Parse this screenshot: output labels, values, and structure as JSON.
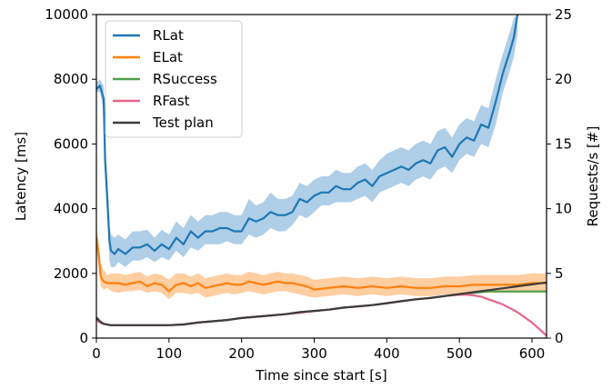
{
  "chart_data": {
    "type": "line",
    "xlabel": "Time since start [s]",
    "ylabel": "Latency [ms]",
    "y2label": "Requests/s [#]",
    "xlim": [
      0,
      620
    ],
    "ylim": [
      0,
      10000
    ],
    "y2lim": [
      0,
      25
    ],
    "xticks": [
      0,
      100,
      200,
      300,
      400,
      500,
      600
    ],
    "yticks": [
      0,
      2000,
      4000,
      6000,
      8000,
      10000
    ],
    "y2ticks": [
      0,
      5,
      10,
      15,
      20,
      25
    ],
    "grid": false,
    "legend_position": "top-left",
    "series": [
      {
        "name": "RLat",
        "axis": "left",
        "color": "#1f77b4",
        "band_color": "#a6c9e4",
        "x": [
          0,
          5,
          10,
          12,
          15,
          18,
          20,
          25,
          30,
          40,
          50,
          60,
          70,
          80,
          90,
          100,
          110,
          120,
          130,
          140,
          150,
          160,
          170,
          180,
          190,
          200,
          210,
          220,
          230,
          240,
          250,
          260,
          270,
          280,
          290,
          300,
          310,
          320,
          330,
          340,
          350,
          360,
          370,
          380,
          390,
          400,
          410,
          420,
          430,
          440,
          450,
          460,
          470,
          480,
          490,
          500,
          510,
          520,
          530,
          540,
          550,
          560,
          570,
          575,
          580
        ],
        "y": [
          7700,
          7800,
          7400,
          5500,
          4300,
          3000,
          2700,
          2600,
          2750,
          2600,
          2800,
          2800,
          2900,
          2700,
          2900,
          2750,
          3100,
          2900,
          3300,
          3100,
          3300,
          3300,
          3400,
          3400,
          3300,
          3300,
          3700,
          3600,
          3700,
          3900,
          3800,
          3800,
          3900,
          4300,
          4200,
          4400,
          4500,
          4500,
          4700,
          4600,
          4600,
          4800,
          4900,
          4700,
          5000,
          5100,
          5200,
          5300,
          5200,
          5400,
          5500,
          5400,
          5800,
          5900,
          5600,
          6000,
          6200,
          6100,
          6600,
          6500,
          7300,
          8200,
          8900,
          9300,
          10000
        ],
        "lower": [
          7600,
          7600,
          7000,
          5000,
          3700,
          2400,
          2200,
          2200,
          2350,
          2200,
          2400,
          2400,
          2500,
          2350,
          2500,
          2400,
          2700,
          2500,
          2800,
          2700,
          2900,
          2900,
          2900,
          3000,
          2900,
          2900,
          3200,
          3100,
          3200,
          3400,
          3300,
          3300,
          3500,
          3800,
          3700,
          3900,
          4100,
          4100,
          4200,
          4200,
          4200,
          4300,
          4400,
          4200,
          4500,
          4600,
          4700,
          4800,
          4700,
          4900,
          5000,
          4900,
          5200,
          5300,
          5100,
          5500,
          5700,
          5600,
          6000,
          5900,
          6600,
          7600,
          8300,
          8700,
          9400
        ],
        "upper": [
          7900,
          8000,
          7800,
          6000,
          4900,
          3500,
          3200,
          3100,
          3200,
          3050,
          3300,
          3300,
          3350,
          3100,
          3350,
          3200,
          3600,
          3400,
          3800,
          3600,
          3800,
          3800,
          3900,
          3900,
          3800,
          3800,
          4300,
          4100,
          4200,
          4500,
          4300,
          4300,
          4400,
          4800,
          4700,
          4900,
          5000,
          5000,
          5200,
          5100,
          5100,
          5300,
          5400,
          5200,
          5500,
          5700,
          5800,
          5900,
          5800,
          6000,
          6100,
          6000,
          6400,
          6500,
          6200,
          6600,
          6800,
          6700,
          7200,
          7100,
          8000,
          8800,
          9500,
          9900,
          10000
        ]
      },
      {
        "name": "ELat",
        "axis": "left",
        "color": "#ff7f0e",
        "band_color": "#ffc997",
        "x": [
          0,
          3,
          6,
          10,
          15,
          20,
          30,
          40,
          50,
          60,
          70,
          80,
          90,
          100,
          110,
          120,
          130,
          140,
          150,
          160,
          170,
          180,
          190,
          200,
          210,
          220,
          230,
          240,
          250,
          260,
          270,
          280,
          290,
          300,
          320,
          340,
          360,
          380,
          400,
          420,
          440,
          460,
          480,
          500,
          520,
          540,
          560,
          580,
          600,
          620
        ],
        "y": [
          3100,
          2600,
          1900,
          1750,
          1700,
          1700,
          1700,
          1650,
          1700,
          1750,
          1600,
          1700,
          1650,
          1450,
          1650,
          1700,
          1600,
          1700,
          1550,
          1600,
          1650,
          1700,
          1650,
          1650,
          1750,
          1700,
          1650,
          1700,
          1750,
          1700,
          1700,
          1650,
          1600,
          1500,
          1550,
          1600,
          1550,
          1600,
          1550,
          1600,
          1550,
          1550,
          1600,
          1600,
          1650,
          1650,
          1650,
          1650,
          1700,
          1700
        ],
        "lower": [
          2800,
          2200,
          1600,
          1500,
          1550,
          1450,
          1400,
          1450,
          1450,
          1500,
          1400,
          1450,
          1400,
          1200,
          1400,
          1400,
          1350,
          1400,
          1250,
          1300,
          1350,
          1400,
          1350,
          1400,
          1450,
          1400,
          1350,
          1400,
          1450,
          1450,
          1400,
          1350,
          1300,
          1250,
          1300,
          1350,
          1300,
          1350,
          1300,
          1350,
          1300,
          1300,
          1350,
          1350,
          1400,
          1400,
          1400,
          1400,
          1400,
          1400
        ],
        "upper": [
          3400,
          3000,
          2300,
          2100,
          1950,
          2000,
          2000,
          1950,
          2000,
          2050,
          1900,
          2000,
          1950,
          1800,
          2000,
          2000,
          1900,
          2000,
          1850,
          1900,
          1950,
          2000,
          1950,
          1950,
          2050,
          2000,
          1950,
          2000,
          2050,
          2000,
          2000,
          1950,
          1900,
          1800,
          1850,
          1900,
          1850,
          1900,
          1850,
          1900,
          1850,
          1850,
          1900,
          1900,
          1950,
          1950,
          1950,
          1950,
          2000,
          2000
        ]
      },
      {
        "name": "RSuccess",
        "axis": "right",
        "color": "#4fa04f",
        "x": [
          0,
          5,
          10,
          20,
          40,
          60,
          80,
          100,
          120,
          140,
          160,
          180,
          200,
          220,
          240,
          260,
          280,
          300,
          320,
          340,
          360,
          380,
          400,
          420,
          440,
          460,
          480,
          500,
          520,
          540,
          560,
          580,
          600,
          620
        ],
        "y": [
          1.4,
          1.2,
          1.1,
          1.0,
          1.0,
          1.0,
          1.0,
          1.0,
          1.05,
          1.2,
          1.3,
          1.4,
          1.55,
          1.65,
          1.75,
          1.85,
          2.0,
          2.1,
          2.2,
          2.35,
          2.45,
          2.55,
          2.7,
          2.85,
          3.0,
          3.1,
          3.25,
          3.4,
          3.5,
          3.6,
          3.6,
          3.6,
          3.6,
          3.6
        ]
      },
      {
        "name": "RFast",
        "axis": "right",
        "color": "#e8668a",
        "x": [
          0,
          5,
          10,
          20,
          40,
          60,
          80,
          100,
          120,
          140,
          160,
          180,
          200,
          220,
          240,
          260,
          280,
          300,
          320,
          340,
          360,
          380,
          400,
          420,
          440,
          460,
          480,
          500,
          510,
          520,
          530,
          540,
          550,
          560,
          570,
          580,
          590,
          600,
          610,
          620
        ],
        "y": [
          1.4,
          1.2,
          1.1,
          1.0,
          1.0,
          1.0,
          1.0,
          1.0,
          1.05,
          1.2,
          1.3,
          1.4,
          1.55,
          1.65,
          1.75,
          1.85,
          1.95,
          2.1,
          2.2,
          2.35,
          2.45,
          2.55,
          2.7,
          2.85,
          3.0,
          3.1,
          3.25,
          3.35,
          3.35,
          3.3,
          3.2,
          3.0,
          2.8,
          2.6,
          2.3,
          2.0,
          1.6,
          1.2,
          0.7,
          0.2
        ]
      },
      {
        "name": "Test plan",
        "axis": "right",
        "color": "#3d3d3d",
        "x": [
          0,
          5,
          10,
          20,
          40,
          60,
          80,
          100,
          120,
          140,
          160,
          180,
          200,
          220,
          240,
          260,
          280,
          300,
          320,
          340,
          360,
          380,
          400,
          420,
          440,
          460,
          480,
          500,
          520,
          540,
          560,
          580,
          600,
          620
        ],
        "y": [
          1.6,
          1.3,
          1.1,
          1.0,
          1.0,
          1.0,
          1.0,
          1.0,
          1.05,
          1.2,
          1.3,
          1.4,
          1.55,
          1.65,
          1.75,
          1.85,
          2.0,
          2.1,
          2.2,
          2.35,
          2.45,
          2.55,
          2.7,
          2.85,
          3.0,
          3.1,
          3.25,
          3.4,
          3.55,
          3.7,
          3.85,
          4.0,
          4.15,
          4.3
        ]
      }
    ]
  }
}
